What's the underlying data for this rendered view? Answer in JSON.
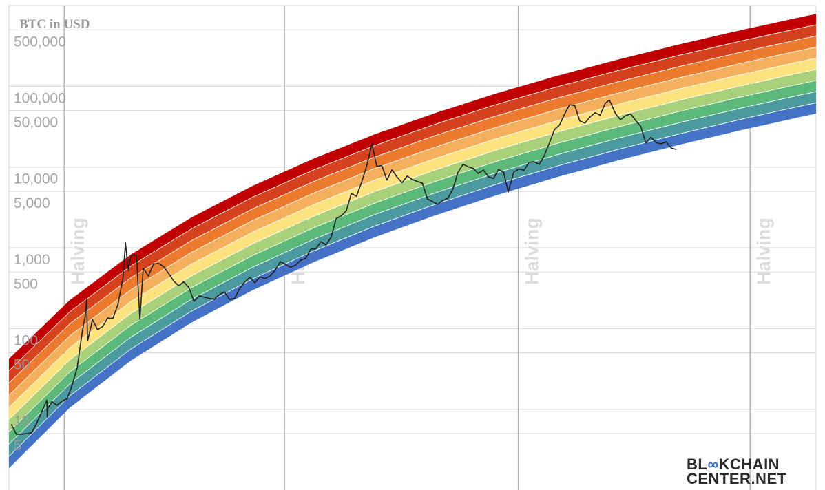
{
  "chart_data": {
    "type": "line",
    "title": "BTC in USD",
    "xlabel": "",
    "ylabel": "",
    "yscale": "log",
    "ylim": [
      1,
      1000000
    ],
    "xlim": [
      "2012-01",
      "2025-04"
    ],
    "grid": true,
    "y_ticks": [
      {
        "value": 500000,
        "label": "500,000"
      },
      {
        "value": 100000,
        "label": "100,000"
      },
      {
        "value": 50000,
        "label": "50,000"
      },
      {
        "value": 10000,
        "label": "10,000"
      },
      {
        "value": 5000,
        "label": "5,000"
      },
      {
        "value": 1000,
        "label": "1,000"
      },
      {
        "value": 500,
        "label": "500"
      },
      {
        "value": 100,
        "label": "100"
      },
      {
        "value": 50,
        "label": "50"
      },
      {
        "value": 10,
        "label": "10"
      },
      {
        "value": 5,
        "label": "5"
      }
    ],
    "halvings": [
      {
        "date": "2012-11-28",
        "label": "Halving"
      },
      {
        "date": "2016-07-09",
        "label": "Halving"
      },
      {
        "date": "2020-05-11",
        "label": "Halving"
      },
      {
        "date": "2024-03-01",
        "label": "Halving"
      }
    ],
    "band_colors": [
      "#4472c4",
      "#4a9a9e",
      "#5cb97b",
      "#a9d17c",
      "#fce380",
      "#f5b05e",
      "#ec7b30",
      "#d6421e",
      "#c00000"
    ],
    "band_edges": {
      "dates": [
        "2012-01",
        "2013-01",
        "2014-01",
        "2015-01",
        "2016-01",
        "2017-01",
        "2018-01",
        "2019-01",
        "2020-01",
        "2021-01",
        "2022-01",
        "2023-01",
        "2024-01",
        "2025-01",
        "2025-07"
      ],
      "lower_usd": [
        1.86,
        10.5,
        40,
        119,
        298,
        662,
        1346,
        2518,
        4467,
        7500,
        12080,
        18790,
        28380,
        41780,
        50230
      ],
      "upper_usd": [
        43,
        230,
        841,
        2432,
        5957,
        12940,
        25820,
        47530,
        82990,
        137400,
        218300,
        335700,
        501200,
        731100,
        874900
      ]
    },
    "series": [
      {
        "color": "#222222",
        "x": [
          "2012-01",
          "2012-02",
          "2012-03",
          "2012-04",
          "2012-05",
          "2012-06",
          "2012-07",
          "2012-08",
          "2012-08-18",
          "2012-08-20",
          "2012-09",
          "2012-10",
          "2012-11",
          "2012-12",
          "2013-01",
          "2013-02",
          "2013-03",
          "2013-04-01",
          "2013-04-10",
          "2013-04-16",
          "2013-05",
          "2013-06",
          "2013-07",
          "2013-08",
          "2013-09",
          "2013-10",
          "2013-11-15",
          "2013-11-30",
          "2013-12-10",
          "2013-12-18",
          "2013-12-28",
          "2014-01",
          "2014-02-05",
          "2014-02-25",
          "2014-03",
          "2014-04",
          "2014-05",
          "2014-06",
          "2014-07",
          "2014-08",
          "2014-09",
          "2014-10",
          "2014-11",
          "2014-12",
          "2015-01",
          "2015-02",
          "2015-03",
          "2015-04",
          "2015-05",
          "2015-06",
          "2015-07",
          "2015-08",
          "2015-09",
          "2015-10",
          "2015-11",
          "2015-12",
          "2016-01",
          "2016-02",
          "2016-03",
          "2016-04",
          "2016-05",
          "2016-06",
          "2016-07",
          "2016-08",
          "2016-09",
          "2016-10",
          "2016-11",
          "2016-12",
          "2017-01",
          "2017-02",
          "2017-03",
          "2017-04",
          "2017-05",
          "2017-06",
          "2017-07",
          "2017-08",
          "2017-09",
          "2017-10",
          "2017-11",
          "2017-12-17",
          "2017-12-30",
          "2018-01",
          "2018-02",
          "2018-03",
          "2018-04",
          "2018-05",
          "2018-06",
          "2018-07",
          "2018-08",
          "2018-09",
          "2018-10",
          "2018-11",
          "2018-12",
          "2019-01",
          "2019-02",
          "2019-03",
          "2019-04",
          "2019-05",
          "2019-06",
          "2019-07",
          "2019-08",
          "2019-09",
          "2019-10",
          "2019-11",
          "2019-12",
          "2020-01",
          "2020-02",
          "2020-03-12",
          "2020-04",
          "2020-05",
          "2020-06",
          "2020-07",
          "2020-08",
          "2020-09",
          "2020-10",
          "2020-11",
          "2020-12",
          "2021-01",
          "2021-02",
          "2021-03",
          "2021-04",
          "2021-05",
          "2021-06",
          "2021-07",
          "2021-08",
          "2021-09",
          "2021-10",
          "2021-11-10",
          "2021-12",
          "2022-01",
          "2022-02",
          "2022-03",
          "2022-04",
          "2022-05",
          "2022-06",
          "2022-07",
          "2022-08",
          "2022-09",
          "2022-10",
          "2022-11",
          "2022-12"
        ],
        "y": [
          6.5,
          4.9,
          4.9,
          5.0,
          5.1,
          6.7,
          9.3,
          13,
          8,
          10.2,
          12.4,
          11.2,
          12.6,
          13.5,
          20,
          33,
          93,
          140,
          230,
          70,
          129,
          97,
          106,
          135,
          133,
          198,
          420,
          1150,
          700,
          520,
          754,
          820,
          800,
          130,
          560,
          446,
          628,
          640,
          585,
          480,
          387,
          338,
          378,
          320,
          217,
          254,
          244,
          236,
          230,
          263,
          284,
          230,
          236,
          314,
          377,
          430,
          368,
          437,
          416,
          448,
          531,
          673,
          624,
          573,
          609,
          700,
          742,
          963,
          970,
          1190,
          1080,
          1350,
          2300,
          2480,
          2875,
          4700,
          4340,
          6470,
          10200,
          19500,
          14150,
          10200,
          10400,
          6900,
          9240,
          7500,
          6400,
          7730,
          7000,
          6625,
          6300,
          4000,
          3740,
          3460,
          3850,
          4100,
          5350,
          8570,
          10800,
          10100,
          9600,
          8300,
          9200,
          7570,
          7200,
          9350,
          8600,
          4900,
          8650,
          9450,
          9140,
          11350,
          11650,
          10780,
          13800,
          19700,
          29000,
          33100,
          45200,
          58900,
          57700,
          37300,
          35000,
          41500,
          47100,
          43800,
          61300,
          67500,
          46300,
          38500,
          43200,
          45500,
          37700,
          31800,
          19800,
          23300,
          20000,
          19400,
          20500,
          17200,
          16500
        ]
      }
    ]
  },
  "logo": {
    "line1_a": "BL",
    "line1_b": "KCHAIN",
    "line2": "CENTER.NET"
  }
}
